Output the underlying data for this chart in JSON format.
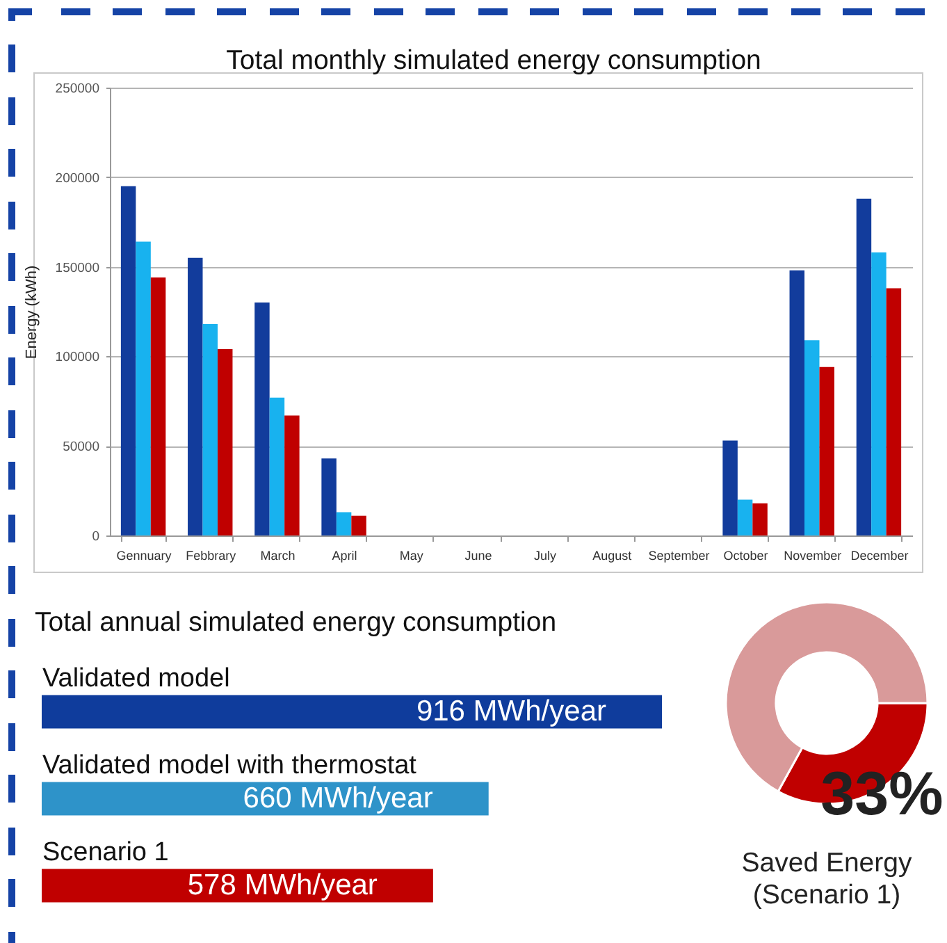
{
  "chart_data": [
    {
      "type": "bar",
      "title": "Total monthly simulated energy consumption",
      "ylabel": "Energy (kWh)",
      "categories": [
        "Gennuary",
        "Febbrary",
        "March",
        "April",
        "May",
        "June",
        "July",
        "August",
        "September",
        "October",
        "November",
        "December"
      ],
      "series": [
        {
          "color": "#123c9c",
          "values": [
            195000,
            155000,
            130000,
            43000,
            null,
            null,
            null,
            null,
            null,
            53000,
            148000,
            188000
          ]
        },
        {
          "color": "#18b2ef",
          "values": [
            164000,
            118000,
            77000,
            13000,
            null,
            null,
            null,
            null,
            null,
            20000,
            109000,
            158000
          ]
        },
        {
          "color": "#c00000",
          "values": [
            144000,
            104000,
            67000,
            11000,
            null,
            null,
            null,
            null,
            null,
            18000,
            94000,
            138000
          ]
        }
      ],
      "ylim": [
        0,
        250000
      ],
      "yticks": [
        0,
        50000,
        100000,
        150000,
        200000,
        250000
      ],
      "grid": "y"
    },
    {
      "type": "bar",
      "orientation": "horizontal",
      "title": "Total annual simulated energy consumption",
      "categories": [
        "Validated model",
        "Validated model with thermostat",
        "Scenario 1"
      ],
      "values": [
        916,
        660,
        578
      ],
      "colors": [
        "#0f3c9c",
        "#2e93c9",
        "#c00000"
      ],
      "value_labels": [
        "916 MWh/year",
        "660 MWh/year",
        "578 MWh/year"
      ]
    },
    {
      "type": "donut",
      "title": "Saved Energy\n(Scenario 1)",
      "categories": [
        null,
        null
      ],
      "values": [
        33,
        67
      ],
      "colors": [
        "#c00000",
        "#d99a9a"
      ],
      "value_labels": [
        "33%",
        null
      ]
    }
  ]
}
